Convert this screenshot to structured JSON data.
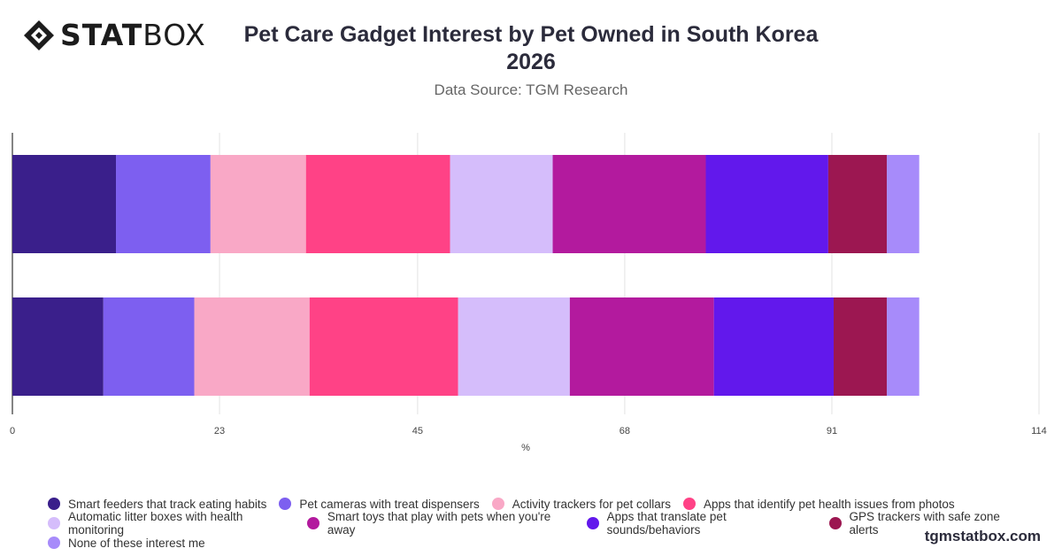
{
  "header": {
    "logo_bold": "STAT",
    "logo_light": "BOX",
    "title_line1": "Pet Care Gadget Interest by Pet Owned in South Korea",
    "title_line2": "2026",
    "subtitle": "Data Source: TGM Research"
  },
  "footer": {
    "watermark": "tgmstatbox.com"
  },
  "chart_data": {
    "type": "bar",
    "orientation": "horizontal",
    "stacked": true,
    "categories": [
      "",
      ""
    ],
    "xlabel": "%",
    "xlim": [
      0,
      114
    ],
    "xticks": [
      "0",
      "23",
      "45",
      "68",
      "91",
      "114"
    ],
    "grid": true,
    "legend_position": "bottom",
    "series": [
      {
        "name": "Smart feeders that track eating habits",
        "color": "#3a1f8b",
        "values": [
          11.5,
          10.1
        ]
      },
      {
        "name": "Pet cameras with treat dispensers",
        "color": "#7d5ff0",
        "values": [
          10.5,
          10.1
        ]
      },
      {
        "name": "Activity trackers for pet collars",
        "color": "#f9a8c6",
        "values": [
          10.6,
          12.8
        ]
      },
      {
        "name": "Apps that identify pet health issues from photos",
        "color": "#ff4286",
        "values": [
          16.0,
          16.5
        ]
      },
      {
        "name": "Automatic litter boxes with health monitoring",
        "color": "#d5bdfb",
        "values": [
          11.4,
          12.4
        ]
      },
      {
        "name": "Smart toys that play with pets when you're away",
        "color": "#b31a9e",
        "values": [
          17.0,
          16.0
        ]
      },
      {
        "name": "Apps that translate pet sounds/behaviors",
        "color": "#6218ec",
        "values": [
          13.6,
          13.3
        ]
      },
      {
        "name": "GPS trackers with safe zone alerts",
        "color": "#9c1751",
        "values": [
          6.5,
          5.9
        ]
      },
      {
        "name": "None of these interest me",
        "color": "#a78bfa",
        "values": [
          3.6,
          3.6
        ]
      }
    ]
  }
}
